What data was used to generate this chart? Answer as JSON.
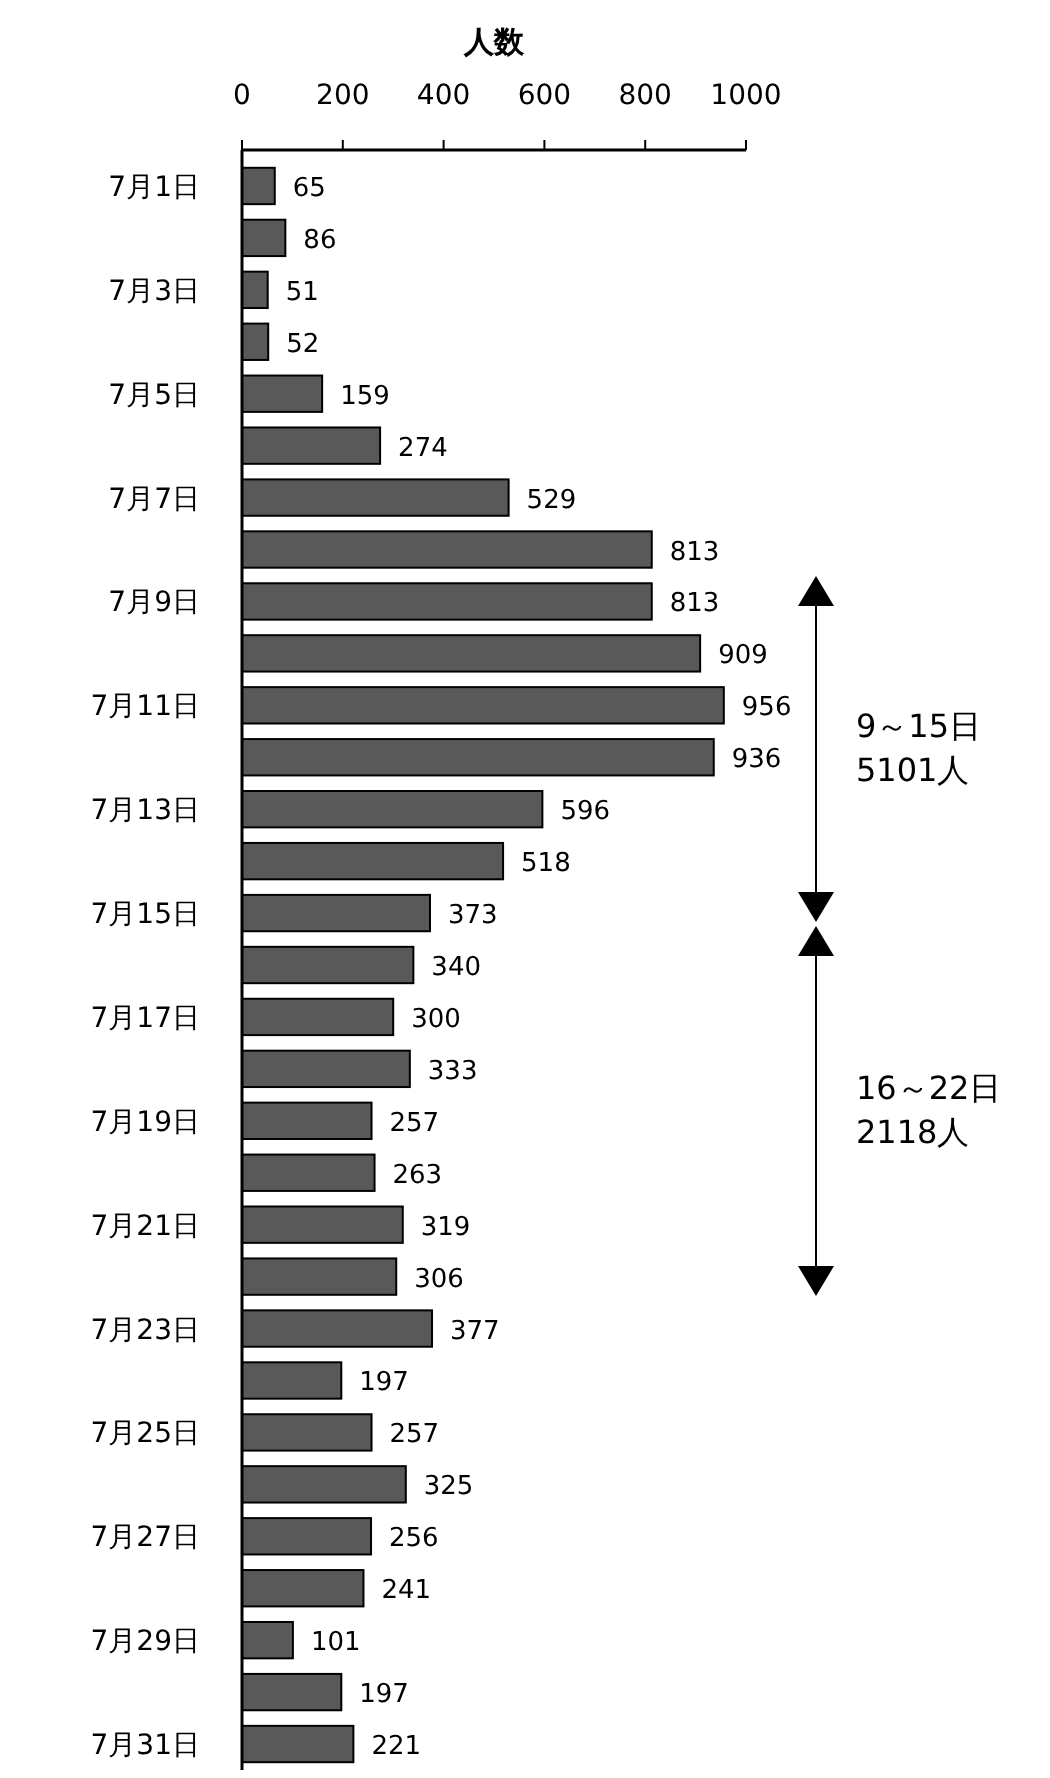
{
  "chart_data": {
    "type": "bar",
    "orientation": "horizontal",
    "xlabel": "人数",
    "categories": [
      "7月1日",
      null,
      "7月3日",
      null,
      "7月5日",
      null,
      "7月7日",
      null,
      "7月9日",
      null,
      "7月11日",
      null,
      "7月13日",
      null,
      "7月15日",
      null,
      "7月17日",
      null,
      "7月19日",
      null,
      "7月21日",
      null,
      "7月23日",
      null,
      "7月25日",
      null,
      "7月27日",
      null,
      "7月29日",
      null,
      "7月31日"
    ],
    "values": [
      65,
      86,
      51,
      52,
      159,
      274,
      529,
      813,
      813,
      909,
      956,
      936,
      596,
      518,
      373,
      340,
      300,
      333,
      257,
      263,
      319,
      306,
      377,
      197,
      257,
      325,
      256,
      241,
      101,
      197,
      221
    ],
    "color": "#595959",
    "xlim": [
      0,
      1000
    ],
    "xticks": [
      0,
      200,
      400,
      600,
      800,
      1000
    ],
    "data_labels": true,
    "grid": false,
    "annotations": [
      "9～15日\n5101人",
      "16～22日\n2118人"
    ]
  }
}
